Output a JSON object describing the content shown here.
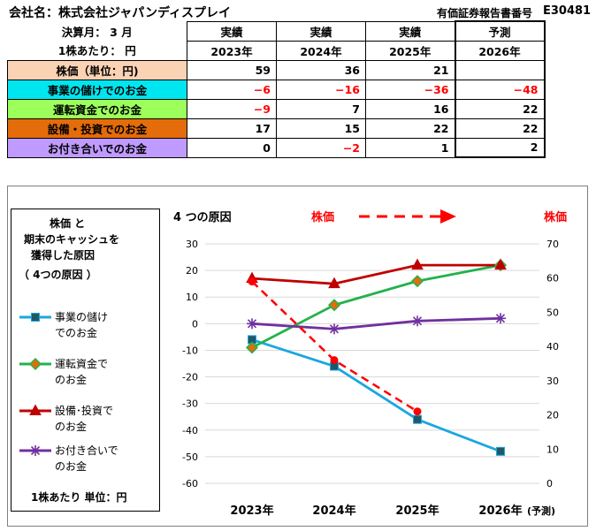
{
  "header": {
    "company": "会社名：株式会社ジャパンディスプレイ",
    "report_label": "有価証券報告書番号",
    "report_no": "E30481",
    "fiscal_month": "決算月：  3  月",
    "unit_note": "1株あたり：  円"
  },
  "table": {
    "col_headers": [
      {
        "kind": "実績",
        "year": "2023年"
      },
      {
        "kind": "実績",
        "year": "2024年"
      },
      {
        "kind": "実績",
        "year": "2025年"
      },
      {
        "kind": "予測",
        "year": "2026年"
      }
    ],
    "rows": [
      {
        "label": "株価（単位：円)",
        "color": "#fad2b4",
        "values": [
          "59",
          "36",
          "21",
          ""
        ]
      },
      {
        "label": "事業の儲けでのお金",
        "color": "#00e6f0",
        "values": [
          "−6",
          "−16",
          "−36",
          "−48"
        ]
      },
      {
        "label": "運転資金でのお金",
        "color": "#9cff5c",
        "values": [
          "−9",
          "7",
          "16",
          "22"
        ]
      },
      {
        "label": "設備・投資でのお金",
        "color": "#e46c0a",
        "values": [
          "17",
          "15",
          "22",
          "22"
        ]
      },
      {
        "label": "お付き合いでのお金",
        "color": "#c09bff",
        "values": [
          "0",
          "−2",
          "1",
          "2"
        ]
      }
    ]
  },
  "legend": {
    "title_lines": [
      "株価 と",
      "期末のキャッシュを",
      "獲得した原因",
      "（ 4つの原因 ）"
    ],
    "items": [
      {
        "line1": "事業の儲け",
        "line2": "でのお金",
        "color": "#1aa7e0"
      },
      {
        "line1": "運転資金で",
        "line2": "のお金",
        "color": "#22b24c"
      },
      {
        "line1": "設備･投資で",
        "line2": "のお金",
        "color": "#c00000"
      },
      {
        "line1": "お付き合いで",
        "line2": "のお金",
        "color": "#7030a0"
      }
    ],
    "unit": "1株あたり  単位：円"
  },
  "chart_data": {
    "type": "line",
    "title": "4 つの原因",
    "stock_label": "株価",
    "stock_axis_label": "株価",
    "categories": [
      "2023年",
      "2024年",
      "2025年",
      "2026年"
    ],
    "forecast_suffix": "(予測)",
    "ylim_left": [
      -60,
      30
    ],
    "yticks_left": [
      30,
      20,
      10,
      0,
      -10,
      -20,
      -30,
      -40,
      -50,
      -60
    ],
    "ylim_right": [
      0,
      70
    ],
    "yticks_right": [
      70,
      60,
      50,
      40,
      30,
      20,
      10,
      0
    ],
    "grid": true,
    "series": [
      {
        "name": "事業の儲けでのお金",
        "axis": "left",
        "color": "#1aa7e0",
        "marker": "square",
        "values": [
          -6,
          -16,
          -36,
          -48
        ]
      },
      {
        "name": "運転資金でのお金",
        "axis": "left",
        "color": "#22b24c",
        "marker": "diamond",
        "values": [
          -9,
          7,
          16,
          22
        ]
      },
      {
        "name": "設備・投資でのお金",
        "axis": "left",
        "color": "#c00000",
        "marker": "triangle",
        "values": [
          17,
          15,
          22,
          22
        ]
      },
      {
        "name": "お付き合いでのお金",
        "axis": "left",
        "color": "#7030a0",
        "marker": "star",
        "values": [
          0,
          -2,
          1,
          2
        ]
      },
      {
        "name": "株価",
        "axis": "right",
        "color": "#ff0000",
        "marker": "circle",
        "dashed": true,
        "values": [
          59,
          36,
          21,
          null
        ]
      }
    ]
  }
}
